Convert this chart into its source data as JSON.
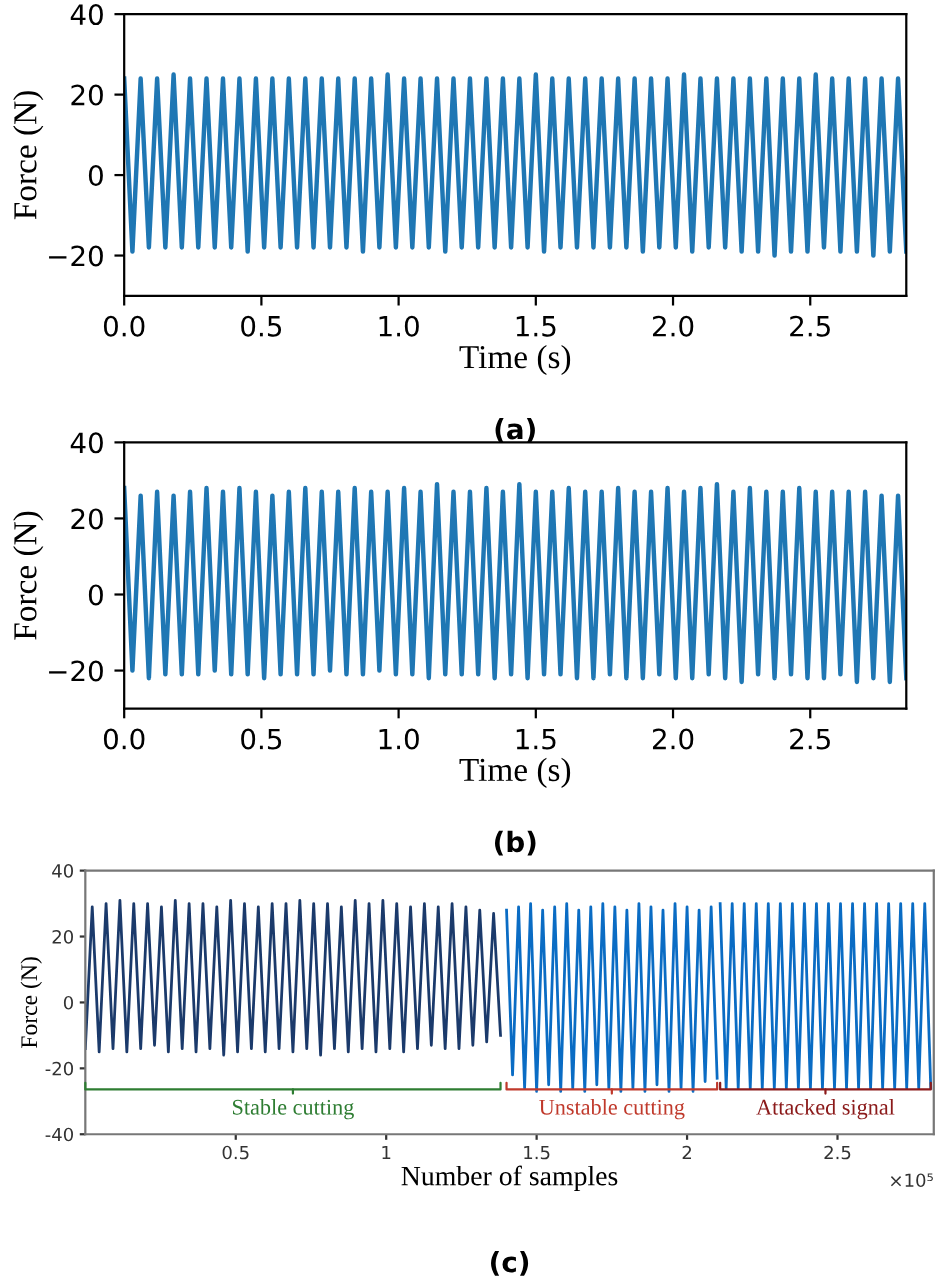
{
  "chart_data": [
    {
      "type": "line",
      "xlabel": "Time (s)",
      "ylabel": "Force (N)",
      "annotations": [
        "(a)"
      ],
      "xlim": [
        0,
        2.85
      ],
      "ylim": [
        -30,
        40
      ],
      "xticks": [
        {
          "value": 0,
          "label": "0.0"
        },
        0.5,
        {
          "value": 1,
          "label": "1.0"
        },
        1.5,
        {
          "value": 2,
          "label": "2.0"
        },
        2.5
      ],
      "yticks": [
        {
          "value": -20,
          "label": "−20"
        },
        0,
        20,
        40
      ],
      "series": [
        {
          "color": "#1f77b4",
          "x": [
            0,
            0.03,
            0.06,
            0.09,
            0.12,
            0.15,
            0.18,
            0.21,
            0.24,
            0.27,
            0.3,
            0.33,
            0.36,
            0.39,
            0.42,
            0.45,
            0.48,
            0.51,
            0.54,
            0.57,
            0.6,
            0.63,
            0.66,
            0.69,
            0.72,
            0.75,
            0.78,
            0.81,
            0.84,
            0.87,
            0.9,
            0.93,
            0.96,
            0.99,
            1.02,
            1.05,
            1.08,
            1.11,
            1.14,
            1.17,
            1.2,
            1.23,
            1.26,
            1.29,
            1.32,
            1.35,
            1.38,
            1.41,
            1.44,
            1.47,
            1.5,
            1.53,
            1.56,
            1.59,
            1.62,
            1.65,
            1.68,
            1.71,
            1.74,
            1.77,
            1.8,
            1.83,
            1.86,
            1.89,
            1.92,
            1.95,
            1.98,
            2.01,
            2.04,
            2.07,
            2.1,
            2.13,
            2.16,
            2.19,
            2.22,
            2.25,
            2.28,
            2.31,
            2.34,
            2.37,
            2.4,
            2.43,
            2.46,
            2.49,
            2.52,
            2.55,
            2.58,
            2.61,
            2.64,
            2.67,
            2.7,
            2.73,
            2.76,
            2.79,
            2.82,
            2.85
          ],
          "values": [
            24,
            -19,
            24,
            -18,
            24,
            -18,
            25,
            -18,
            24,
            -18,
            24,
            -18,
            24,
            -18,
            24,
            -19,
            24,
            -18,
            24,
            -18,
            24,
            -18,
            24,
            -18,
            24,
            -18,
            24,
            -18,
            24,
            -19,
            24,
            -18,
            25,
            -18,
            24,
            -18,
            24,
            -18,
            24,
            -19,
            24,
            -18,
            24,
            -18,
            24,
            -18,
            24,
            -18,
            24,
            -18,
            25,
            -19,
            24,
            -18,
            24,
            -18,
            24,
            -18,
            24,
            -18,
            24,
            -18,
            24,
            -19,
            24,
            -18,
            24,
            -18,
            25,
            -19,
            24,
            -18,
            24,
            -18,
            24,
            -19,
            24,
            -19,
            24,
            -20,
            24,
            -19,
            24,
            -19,
            25,
            -18,
            24,
            -19,
            24,
            -19,
            24,
            -20,
            24,
            -19,
            24,
            -19
          ]
        }
      ]
    },
    {
      "type": "line",
      "xlabel": "Time (s)",
      "ylabel": "Force (N)",
      "annotations": [
        "(b)"
      ],
      "xlim": [
        0,
        2.85
      ],
      "ylim": [
        -30,
        40
      ],
      "xticks": [
        {
          "value": 0,
          "label": "0.0"
        },
        0.5,
        {
          "value": 1,
          "label": "1.0"
        },
        1.5,
        {
          "value": 2,
          "label": "2.0"
        },
        2.5
      ],
      "yticks": [
        {
          "value": -20,
          "label": "−20"
        },
        0,
        20,
        40
      ],
      "series": [
        {
          "color": "#1f77b4",
          "x": [
            0,
            0.03,
            0.06,
            0.09,
            0.12,
            0.15,
            0.18,
            0.21,
            0.24,
            0.27,
            0.3,
            0.33,
            0.36,
            0.39,
            0.42,
            0.45,
            0.48,
            0.51,
            0.54,
            0.57,
            0.6,
            0.63,
            0.66,
            0.69,
            0.72,
            0.75,
            0.78,
            0.81,
            0.84,
            0.87,
            0.9,
            0.93,
            0.96,
            0.99,
            1.02,
            1.05,
            1.08,
            1.11,
            1.14,
            1.17,
            1.2,
            1.23,
            1.26,
            1.29,
            1.32,
            1.35,
            1.38,
            1.41,
            1.44,
            1.47,
            1.5,
            1.53,
            1.56,
            1.59,
            1.62,
            1.65,
            1.68,
            1.71,
            1.74,
            1.77,
            1.8,
            1.83,
            1.86,
            1.89,
            1.92,
            1.95,
            1.98,
            2.01,
            2.04,
            2.07,
            2.1,
            2.13,
            2.16,
            2.19,
            2.22,
            2.25,
            2.28,
            2.31,
            2.34,
            2.37,
            2.4,
            2.43,
            2.46,
            2.49,
            2.52,
            2.55,
            2.58,
            2.61,
            2.64,
            2.67,
            2.7,
            2.73,
            2.76,
            2.79,
            2.82,
            2.85
          ],
          "values": [
            28,
            -20,
            26,
            -22,
            27,
            -21,
            26,
            -21,
            27,
            -21,
            28,
            -20,
            27,
            -21,
            28,
            -21,
            27,
            -22,
            26,
            -21,
            27,
            -21,
            28,
            -21,
            27,
            -20,
            27,
            -21,
            28,
            -21,
            27,
            -20,
            27,
            -21,
            28,
            -21,
            27,
            -22,
            29,
            -21,
            27,
            -21,
            27,
            -21,
            28,
            -22,
            27,
            -21,
            29,
            -22,
            27,
            -21,
            27,
            -21,
            28,
            -22,
            27,
            -22,
            27,
            -21,
            28,
            -22,
            27,
            -22,
            27,
            -21,
            28,
            -22,
            27,
            -22,
            28,
            -21,
            29,
            -22,
            27,
            -23,
            28,
            -21,
            27,
            -22,
            27,
            -21,
            28,
            -22,
            27,
            -22,
            27,
            -21,
            27,
            -23,
            27,
            -22,
            26,
            -23,
            26,
            -22
          ]
        }
      ]
    },
    {
      "type": "line",
      "xlabel": "Number of samples",
      "ylabel": "Force (N)",
      "xlim": [
        0,
        2.82
      ],
      "ylim": [
        -40,
        40
      ],
      "xticks": [
        0.5,
        1,
        1.5,
        2,
        2.5
      ],
      "yticks": [
        -40,
        -20,
        0,
        20,
        40
      ],
      "annotations": [
        "Stable cutting",
        "Unstable cutting",
        "Attacked signal",
        "×10⁵",
        "(c)"
      ],
      "series": [
        {
          "color": "#1b3a6b",
          "x": [
            0,
            0.023,
            0.046,
            0.069,
            0.092,
            0.115,
            0.138,
            0.161,
            0.184,
            0.207,
            0.23,
            0.253,
            0.276,
            0.299,
            0.322,
            0.345,
            0.368,
            0.391,
            0.414,
            0.437,
            0.46,
            0.483,
            0.506,
            0.529,
            0.552,
            0.575,
            0.598,
            0.621,
            0.644,
            0.667,
            0.69,
            0.713,
            0.736,
            0.759,
            0.782,
            0.805,
            0.828,
            0.851,
            0.874,
            0.897,
            0.92,
            0.943,
            0.966,
            0.989,
            1.012,
            1.035,
            1.058,
            1.081,
            1.104,
            1.127,
            1.15,
            1.173,
            1.196,
            1.219,
            1.242,
            1.265,
            1.288,
            1.311,
            1.334,
            1.357,
            1.38
          ],
          "values": [
            -14,
            29,
            -15,
            30,
            -14,
            31,
            -15,
            30,
            -14,
            30,
            -13,
            29,
            -15,
            31,
            -14,
            30,
            -15,
            30,
            -14,
            29,
            -16,
            31,
            -15,
            30,
            -14,
            29,
            -15,
            30,
            -14,
            30,
            -15,
            31,
            -14,
            30,
            -16,
            30,
            -14,
            29,
            -15,
            31,
            -14,
            30,
            -15,
            31,
            -14,
            30,
            -15,
            29,
            -14,
            30,
            -13,
            29,
            -14,
            30,
            -14,
            29,
            -13,
            28,
            -12,
            27,
            -10
          ]
        },
        {
          "color": "#0a6cc4",
          "x": [
            1.4,
            1.42,
            1.44,
            1.46,
            1.48,
            1.5,
            1.52,
            1.54,
            1.56,
            1.58,
            1.6,
            1.62,
            1.64,
            1.66,
            1.68,
            1.7,
            1.72,
            1.74,
            1.76,
            1.78,
            1.8,
            1.82,
            1.84,
            1.86,
            1.88,
            1.9,
            1.92,
            1.94,
            1.96,
            1.98,
            2,
            2.02,
            2.04,
            2.06,
            2.08,
            2.1
          ],
          "values": [
            28,
            -22,
            29,
            -26,
            30,
            -27,
            28,
            -25,
            29,
            -27,
            30,
            -26,
            28,
            -27,
            29,
            -25,
            30,
            -26,
            29,
            -27,
            28,
            -26,
            30,
            -27,
            29,
            -25,
            28,
            -27,
            30,
            -26,
            29,
            -27,
            28,
            -24,
            29,
            -23
          ]
        },
        {
          "color": "#0a6cc4",
          "x": [
            2.11,
            2.13,
            2.15,
            2.17,
            2.19,
            2.21,
            2.23,
            2.25,
            2.27,
            2.29,
            2.31,
            2.33,
            2.35,
            2.37,
            2.39,
            2.41,
            2.43,
            2.45,
            2.47,
            2.49,
            2.51,
            2.53,
            2.55,
            2.57,
            2.59,
            2.61,
            2.63,
            2.65,
            2.67,
            2.69,
            2.71,
            2.73,
            2.75,
            2.77,
            2.79,
            2.81
          ],
          "values": [
            30,
            -26,
            30,
            -26,
            30,
            -26,
            30,
            -26,
            30,
            -26,
            30,
            -26,
            30,
            -26,
            30,
            -26,
            30,
            -26,
            30,
            -26,
            30,
            -26,
            30,
            -26,
            30,
            -26,
            30,
            -26,
            30,
            -26,
            30,
            -26,
            30,
            -26,
            30,
            -26
          ]
        }
      ]
    }
  ]
}
